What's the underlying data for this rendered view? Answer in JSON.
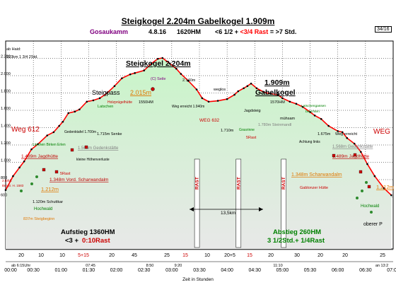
{
  "header": {
    "title": "Steigkogel 2.204m Gabelkogel 1.909m",
    "area": "Gosaukamm",
    "date": "4.8.16",
    "total_hm": "1620HM",
    "time_part1": "<6 1/2 + ",
    "time_part2": "<3/4 Rast",
    "time_part3": " = >7 Std.",
    "page_badge": "34/16"
  },
  "colors": {
    "profile": "#ff0000",
    "fill_top": "#c8f5c8",
    "fill_bottom": "#e6e6e6",
    "title_purple": "#800080",
    "orange_text": "#e07800",
    "green_text": "#008000",
    "red_text": "#c00000",
    "rast_bar": "#cc0000",
    "grey_text": "#808080"
  },
  "chart_data": {
    "type": "area",
    "title": "Steigkogel 2.204m Gabelkogel 1.909m",
    "xlabel": "Zeit in Stunden",
    "ylabel": "",
    "xlim": [
      0,
      420
    ],
    "ylim": [
      0,
      2400
    ],
    "x_ticks": [
      "00:00",
      "00:30",
      "01:00",
      "01:30",
      "02:00",
      "02:30",
      "03:00",
      "03:30",
      "04:00",
      "04:30",
      "05:00",
      "05:30",
      "06:00",
      "06:30",
      "07:00"
    ],
    "x_tick_minutes": [
      0,
      30,
      60,
      90,
      120,
      150,
      180,
      210,
      240,
      270,
      300,
      330,
      360,
      390,
      420
    ],
    "y_tick_labels": [
      "2.200",
      "2.000",
      "1.800",
      "1.600",
      "1.400",
      "1.200",
      "1.000",
      "800",
      "600"
    ],
    "y_tick_values": [
      2200,
      2000,
      1800,
      1600,
      1400,
      1200,
      1000,
      800,
      600
    ],
    "series": [
      {
        "name": "",
        "x": [
          0,
          8,
          15,
          20,
          28,
          35,
          45,
          52,
          58,
          62,
          68,
          75,
          80,
          88,
          95,
          102,
          110,
          118,
          126,
          135,
          140,
          150,
          158,
          165,
          170,
          178,
          185,
          190,
          198,
          207,
          213,
          220,
          230,
          240,
          248,
          252,
          258,
          262,
          266,
          272,
          280,
          287,
          295,
          300,
          308,
          315,
          322,
          330,
          335,
          342,
          350,
          360,
          365,
          370,
          378,
          385,
          392,
          400,
          410,
          418
        ],
        "y": [
          680,
          840,
          940,
          1010,
          1150,
          1210,
          1310,
          1348,
          1420,
          1468,
          1568,
          1585,
          1610,
          1700,
          1715,
          1740,
          1800,
          1880,
          1970,
          2015,
          2030,
          2060,
          2140,
          2195,
          2204,
          2140,
          2080,
          2020,
          1940,
          1840,
          1740,
          1700,
          1710,
          1730,
          1780,
          1820,
          1855,
          1880,
          1909,
          1855,
          1810,
          1790,
          1780,
          1740,
          1700,
          1675,
          1640,
          1580,
          1540,
          1500,
          1420,
          1360,
          1348,
          1280,
          1215,
          1120,
          980,
          840,
          700,
          620
        ]
      }
    ],
    "segments_minutes": [
      "20",
      "10",
      "10",
      "5+15",
      "20",
      "45",
      "25",
      "15",
      "10",
      "20+5",
      "15",
      "20",
      "30",
      "20",
      "20",
      "25"
    ],
    "rast_labels": [
      "RAST",
      "RAST",
      "RAST",
      "RAST"
    ],
    "annotations": {
      "start_left": "ab Haid:",
      "start_note": "123km 1 3/4 2Std.",
      "weg612_left": "Weg 612",
      "weg_right": "WEG",
      "weg632": "WEG 632",
      "steigpass_label": "Steigpass",
      "steigpass_alt": "2.015m",
      "steigkogel_title": "Steigkogel 2.204m",
      "gabelkogel_alt": "1.909m",
      "gabelkogel_name": "Gabelkogel",
      "seile": "(C) Seile",
      "summit_alt": "2.140m",
      "weglos": "weglos",
      "hm1550": "1550HM",
      "weg_erreicht_1940": "Weg erreicht 1.940m",
      "hm1570": "1570HM",
      "jagdsteig": "Jagdsteig",
      "muehsam": "mühsam",
      "latschengassen": "Latschengassen beachten",
      "steinmandl": "1.780m Steinmandl",
      "fuenf_rast": "5Rast",
      "grasrinne": "Grasrinne",
      "alt1710": "1.710m",
      "achtung_links": "Achtung links",
      "alt1675": "1.675m",
      "weg_erreicht_r": "Weg erreicht",
      "gedenkstaette_r": "1.568m Gedenkstätte",
      "jagdhuette_r": "1.489m Jagdhütte",
      "scharwandalm_r": "1.348m  Scharwandalm",
      "gablonzer": "Gablonzer Hütte",
      "alt1212_r": "1.212m",
      "hochwald_r": "Hochwald",
      "oberer_p": "oberer P",
      "holzpruegel": "Holzprügelhütte",
      "latschen": "Latschen",
      "alt1715": "1.715m Senke",
      "gedenktafel": "Gedenktafel 1.700m",
      "gedenkstaette_l": "1.568m Gedenkstätte",
      "hoehenv": "kleine Höhenverluste",
      "laerchen": "Lärchen Birken Erlen",
      "jagdhuette_l": "1.489m Jagdhütte",
      "fuenf_rast_l": "5Rast",
      "scharwandalm_l": "1.348m  Vord. Scharwandalm",
      "alt1212_l": "1.212m",
      "hochwald_l": "Hochwald",
      "schuttkar": "1.120m Schuttkar",
      "steigbeginn": "837m Steigbeginn",
      "bergst_left": "2.5Std.",
      "bergst_left2": "Bergtr. H. 1583",
      "distance": "13,5km",
      "aufstieg": "Aufstieg 1360HM",
      "aufstieg_time": "<3 + ",
      "aufstieg_rast": "0:10Rast",
      "abstieg": "Abstieg  260HM",
      "abstieg_time": "3 1/2Std.+ 1/4Rast",
      "time_start": "ab 6:15Uhr",
      "time_0745": "07:45",
      "time_0850": "8:50",
      "time_0920": "9:20",
      "time_1110": "11:10",
      "time_end": "an 13:2"
    }
  }
}
